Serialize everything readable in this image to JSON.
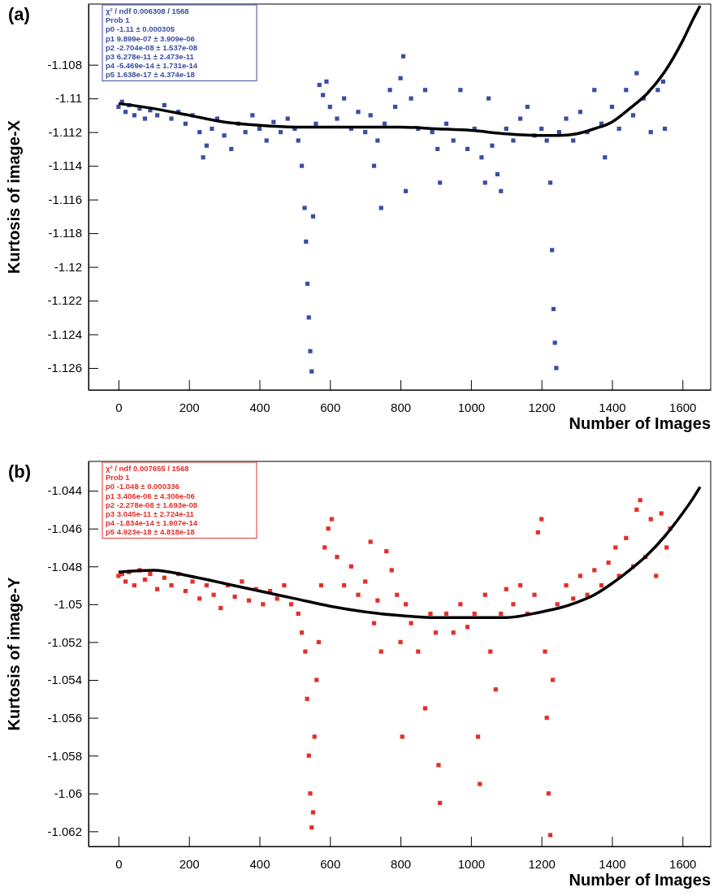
{
  "chart_data": [
    {
      "type": "scatter",
      "title": "(a)",
      "xlabel": "Number of Images",
      "ylabel": "Kurtosis of image-X",
      "xlim": [
        -85,
        1680
      ],
      "ylim": [
        -1.1273,
        -1.1044
      ],
      "xticks": [
        0,
        200,
        400,
        600,
        800,
        1000,
        1200,
        1400,
        1600
      ],
      "yticks": [
        -1.126,
        -1.124,
        -1.122,
        -1.12,
        -1.118,
        -1.116,
        -1.114,
        -1.112,
        -1.11,
        -1.108
      ],
      "grid": false,
      "annotations": [
        "χ² / ndf 0.006308 / 1568",
        "Prob 1",
        "p0 -1.11 ± 0.000305",
        "p1 9.899e-07 ± 3.909e-06",
        "p2 -2.704e-08 ± 1.537e-08",
        "p3 6.278e-11 ± 2.473e-11",
        "p4 -5.469e-14 ± 1.731e-14",
        "p5 1.638e-17 ± 4.374e-18"
      ],
      "series": [
        {
          "marker": "square",
          "color": "#3b4ea3",
          "x": [
            0,
            10,
            20,
            30,
            45,
            60,
            75,
            90,
            110,
            130,
            150,
            170,
            190,
            210,
            230,
            240,
            250,
            265,
            280,
            300,
            320,
            340,
            360,
            380,
            400,
            420,
            440,
            460,
            480,
            500,
            510,
            520,
            528,
            532,
            536,
            540,
            544,
            548,
            552,
            560,
            570,
            580,
            590,
            600,
            620,
            640,
            660,
            680,
            700,
            715,
            725,
            735,
            745,
            755,
            770,
            785,
            800,
            808,
            815,
            830,
            850,
            870,
            890,
            905,
            912,
            930,
            950,
            970,
            990,
            1010,
            1030,
            1040,
            1050,
            1060,
            1075,
            1085,
            1100,
            1120,
            1140,
            1160,
            1180,
            1200,
            1215,
            1225,
            1230,
            1234,
            1238,
            1242,
            1250,
            1270,
            1290,
            1310,
            1330,
            1350,
            1370,
            1380,
            1400,
            1420,
            1440,
            1460,
            1470,
            1490,
            1510,
            1530,
            1545,
            1550
          ],
          "values": [
            -1.1105,
            -1.1102,
            -1.1108,
            -1.1104,
            -1.111,
            -1.1106,
            -1.1112,
            -1.1107,
            -1.111,
            -1.1104,
            -1.1112,
            -1.1108,
            -1.1115,
            -1.111,
            -1.112,
            -1.1135,
            -1.1128,
            -1.1118,
            -1.1112,
            -1.1122,
            -1.113,
            -1.1115,
            -1.112,
            -1.111,
            -1.1118,
            -1.1125,
            -1.1114,
            -1.112,
            -1.1112,
            -1.1118,
            -1.1125,
            -1.114,
            -1.1165,
            -1.1185,
            -1.121,
            -1.123,
            -1.125,
            -1.1262,
            -1.117,
            -1.1115,
            -1.1092,
            -1.1098,
            -1.109,
            -1.1105,
            -1.1112,
            -1.11,
            -1.1118,
            -1.1108,
            -1.112,
            -1.111,
            -1.114,
            -1.1125,
            -1.1165,
            -1.1115,
            -1.1095,
            -1.1105,
            -1.1088,
            -1.1075,
            -1.1155,
            -1.11,
            -1.1118,
            -1.1095,
            -1.112,
            -1.113,
            -1.115,
            -1.1115,
            -1.1125,
            -1.1095,
            -1.113,
            -1.1118,
            -1.1135,
            -1.115,
            -1.11,
            -1.1128,
            -1.1145,
            -1.1155,
            -1.1118,
            -1.1125,
            -1.1112,
            -1.1105,
            -1.1122,
            -1.1118,
            -1.1125,
            -1.115,
            -1.119,
            -1.1225,
            -1.1245,
            -1.126,
            -1.112,
            -1.1112,
            -1.1125,
            -1.1108,
            -1.112,
            -1.1095,
            -1.1115,
            -1.1135,
            -1.1105,
            -1.1118,
            -1.1095,
            -1.111,
            -1.1085,
            -1.11,
            -1.112,
            -1.1095,
            -1.109,
            -1.1118
          ]
        },
        {
          "type": "line",
          "color": "#000000",
          "x": [
            0,
            100,
            200,
            300,
            400,
            500,
            600,
            700,
            800,
            900,
            1000,
            1100,
            1200,
            1250,
            1300,
            1350,
            1400,
            1450,
            1500,
            1550,
            1600,
            1630,
            1650
          ],
          "values": [
            -1.1103,
            -1.1106,
            -1.111,
            -1.1114,
            -1.1116,
            -1.1117,
            -1.1117,
            -1.1117,
            -1.1117,
            -1.1118,
            -1.1119,
            -1.1121,
            -1.1122,
            -1.1122,
            -1.1121,
            -1.1118,
            -1.1114,
            -1.1106,
            -1.1097,
            -1.1084,
            -1.1066,
            -1.1053,
            -1.1045
          ]
        }
      ]
    },
    {
      "type": "scatter",
      "title": "(b)",
      "xlabel": "Number of Images",
      "ylabel": "Kurtosis of image-Y",
      "xlim": [
        -85,
        1680
      ],
      "ylim": [
        -1.0628,
        -1.04245
      ],
      "xticks": [
        0,
        200,
        400,
        600,
        800,
        1000,
        1200,
        1400,
        1600
      ],
      "yticks": [
        -1.062,
        -1.06,
        -1.058,
        -1.056,
        -1.054,
        -1.052,
        -1.05,
        -1.048,
        -1.046,
        -1.044
      ],
      "grid": false,
      "annotations": [
        "χ² / ndf 0.007655 / 1568",
        "Prob 1",
        "p0 -1.048 ± 0.000336",
        "p1 3.406e-06 ± 4.306e-06",
        "p2 -2.278e-08 ± 1.693e-08",
        "p3 3.045e-11 ± 2.724e-11",
        "p4 -1.834e-14 ± 1.907e-14",
        "p5 4.923e-18 ± 4.818e-18"
      ],
      "series": [
        {
          "marker": "square",
          "color": "#e2302a",
          "x": [
            0,
            10,
            20,
            30,
            45,
            60,
            75,
            90,
            110,
            130,
            150,
            170,
            190,
            210,
            230,
            250,
            270,
            290,
            310,
            330,
            350,
            370,
            390,
            410,
            430,
            450,
            470,
            490,
            510,
            520,
            530,
            535,
            540,
            544,
            548,
            552,
            556,
            562,
            568,
            575,
            585,
            595,
            605,
            620,
            640,
            660,
            680,
            700,
            715,
            725,
            735,
            745,
            760,
            775,
            790,
            800,
            805,
            815,
            830,
            850,
            870,
            885,
            900,
            908,
            912,
            930,
            950,
            970,
            990,
            1010,
            1020,
            1025,
            1040,
            1055,
            1070,
            1085,
            1100,
            1120,
            1140,
            1160,
            1180,
            1190,
            1200,
            1210,
            1215,
            1220,
            1225,
            1232,
            1245,
            1270,
            1290,
            1310,
            1330,
            1350,
            1370,
            1390,
            1410,
            1420,
            1440,
            1460,
            1470,
            1480,
            1495,
            1510,
            1525,
            1540,
            1555,
            1565
          ],
          "values": [
            -1.0485,
            -1.0484,
            -1.0488,
            -1.0483,
            -1.049,
            -1.0482,
            -1.0487,
            -1.0484,
            -1.0492,
            -1.0486,
            -1.049,
            -1.0484,
            -1.0493,
            -1.0488,
            -1.0497,
            -1.049,
            -1.0495,
            -1.0502,
            -1.049,
            -1.0496,
            -1.0488,
            -1.0498,
            -1.0492,
            -1.05,
            -1.0493,
            -1.0497,
            -1.049,
            -1.05,
            -1.0505,
            -1.0515,
            -1.0525,
            -1.055,
            -1.058,
            -1.06,
            -1.0618,
            -1.061,
            -1.057,
            -1.054,
            -1.052,
            -1.049,
            -1.047,
            -1.046,
            -1.0455,
            -1.0475,
            -1.049,
            -1.048,
            -1.0495,
            -1.0488,
            -1.0467,
            -1.051,
            -1.0498,
            -1.0525,
            -1.0472,
            -1.0482,
            -1.0495,
            -1.052,
            -1.057,
            -1.05,
            -1.051,
            -1.0525,
            -1.0555,
            -1.0505,
            -1.0515,
            -1.0585,
            -1.0605,
            -1.0505,
            -1.0515,
            -1.05,
            -1.0512,
            -1.0505,
            -1.057,
            -1.0595,
            -1.0495,
            -1.0525,
            -1.0545,
            -1.0505,
            -1.0492,
            -1.05,
            -1.049,
            -1.0505,
            -1.0495,
            -1.0462,
            -1.0455,
            -1.0525,
            -1.056,
            -1.06,
            -1.0622,
            -1.054,
            -1.05,
            -1.049,
            -1.0497,
            -1.0485,
            -1.0495,
            -1.0482,
            -1.049,
            -1.0478,
            -1.047,
            -1.0485,
            -1.0465,
            -1.048,
            -1.045,
            -1.0445,
            -1.0475,
            -1.0455,
            -1.0485,
            -1.0452,
            -1.047,
            -1.046
          ]
        },
        {
          "type": "line",
          "color": "#000000",
          "x": [
            0,
            100,
            200,
            300,
            400,
            500,
            600,
            700,
            800,
            900,
            1000,
            1100,
            1200,
            1250,
            1300,
            1350,
            1400,
            1450,
            1500,
            1550,
            1600,
            1630,
            1650
          ],
          "values": [
            -1.0483,
            -1.0482,
            -1.0485,
            -1.0489,
            -1.0493,
            -1.0497,
            -1.0501,
            -1.0504,
            -1.0506,
            -1.0507,
            -1.0507,
            -1.0507,
            -1.0504,
            -1.0502,
            -1.0499,
            -1.0495,
            -1.0489,
            -1.0482,
            -1.0474,
            -1.0464,
            -1.0452,
            -1.0444,
            -1.0438
          ]
        }
      ]
    }
  ]
}
